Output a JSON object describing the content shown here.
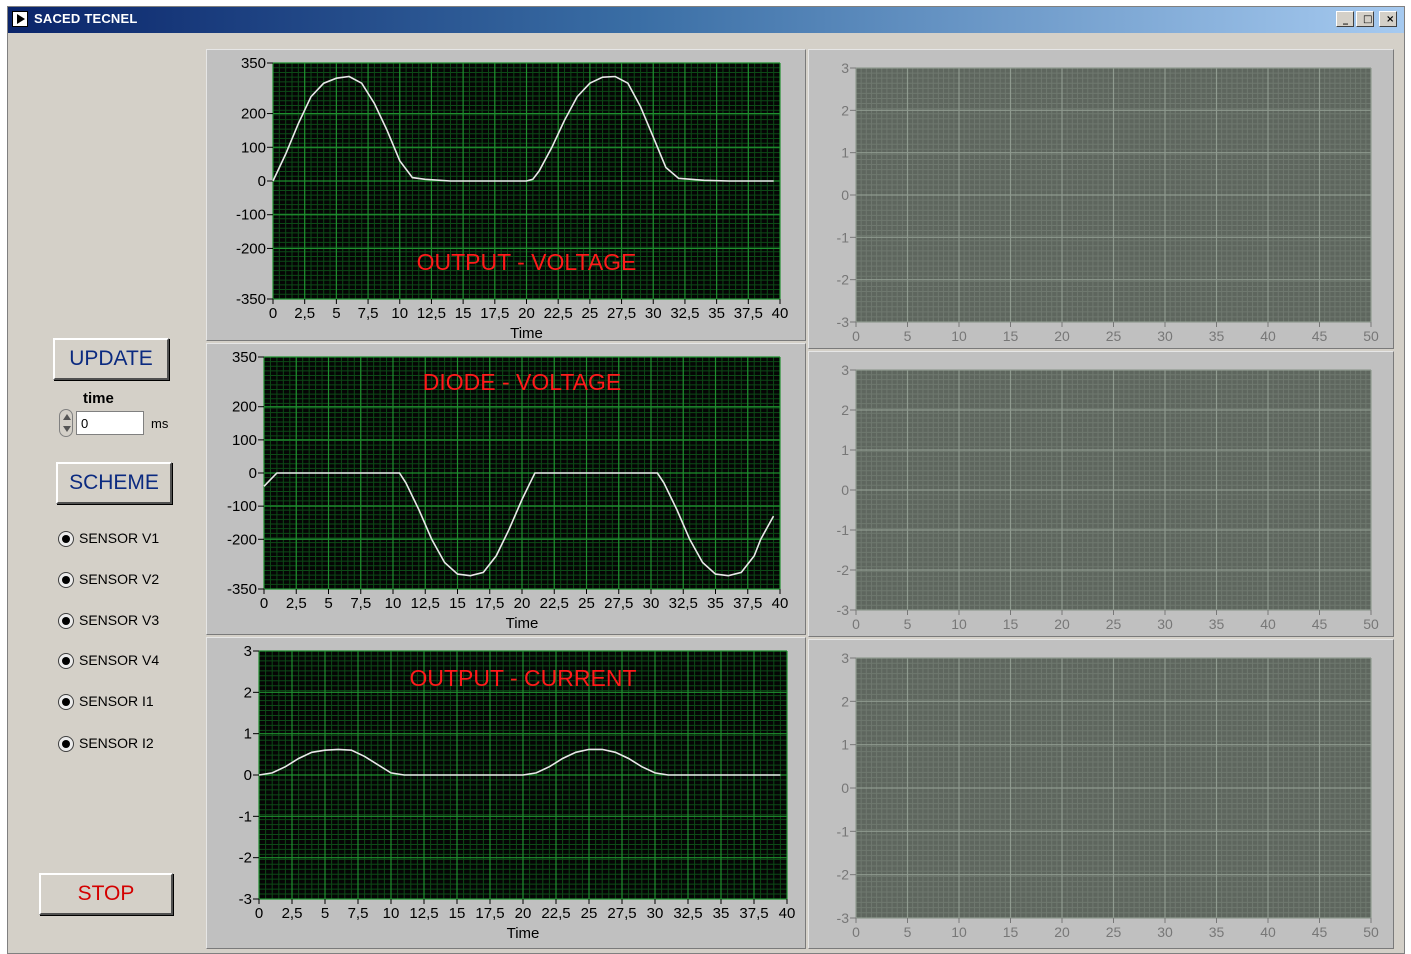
{
  "window": {
    "title": "SACED TECNEL",
    "controls": {
      "minimize": "_",
      "maximize": "□",
      "close": "×"
    }
  },
  "controls": {
    "update_label": "UPDATE",
    "time_label": "time",
    "time_value": "0",
    "time_unit": "ms",
    "scheme_label": "SCHEME",
    "stop_label": "STOP",
    "sensors": [
      "SENSOR V1",
      "SENSOR V2",
      "SENSOR V3",
      "SENSOR V4",
      "SENSOR I1",
      "SENSOR I2"
    ]
  },
  "colors": {
    "plot_bg": "#050505",
    "grid_major": "#1f8f2f",
    "grid_minor": "#0d4a17",
    "trace": "#e8e8e8",
    "chart_title": "#ff1a1a",
    "empty_plot_bg": "#5e665e",
    "stop_label": "#d40000",
    "button_label": "#0b2a80"
  },
  "chart_data": [
    {
      "id": "output-voltage",
      "type": "line",
      "title": "OUTPUT - VOLTAGE",
      "xlabel": "Time",
      "ylabel": "",
      "xlim": [
        0,
        40
      ],
      "ylim": [
        -350,
        350
      ],
      "xticks": [
        0,
        2.5,
        5,
        7.5,
        10,
        12.5,
        15,
        17.5,
        20,
        22.5,
        25,
        27.5,
        30,
        32.5,
        35,
        37.5,
        40
      ],
      "xtick_labels": [
        "0",
        "2,5",
        "5",
        "7,5",
        "10",
        "12,5",
        "15",
        "17,5",
        "20",
        "22,5",
        "25",
        "27,5",
        "30",
        "32,5",
        "35",
        "37,5",
        "40"
      ],
      "yticks": [
        350,
        200,
        100,
        0,
        -100,
        -200,
        -350
      ],
      "ytick_labels": [
        "350",
        "200",
        "100",
        "0",
        "-100",
        "-200",
        "-350"
      ],
      "title_position": "bottom-center",
      "series": [
        {
          "x": [
            0,
            1,
            2,
            3,
            4,
            5,
            6,
            7,
            8,
            9,
            10,
            11,
            12,
            14,
            16,
            18,
            20,
            20.5,
            21,
            22,
            23,
            24,
            25,
            26,
            27,
            28,
            29,
            30,
            31,
            32,
            34,
            36,
            38,
            39.5
          ],
          "y": [
            0,
            80,
            170,
            250,
            290,
            305,
            310,
            290,
            230,
            150,
            60,
            10,
            5,
            0,
            0,
            0,
            0,
            5,
            30,
            100,
            180,
            250,
            290,
            308,
            310,
            290,
            220,
            130,
            40,
            8,
            2,
            0,
            0,
            0
          ]
        }
      ]
    },
    {
      "id": "diode-voltage",
      "type": "line",
      "title": "DIODE - VOLTAGE",
      "xlabel": "Time",
      "ylabel": "",
      "xlim": [
        0,
        40
      ],
      "ylim": [
        -350,
        350
      ],
      "xticks": [
        0,
        2.5,
        5,
        7.5,
        10,
        12.5,
        15,
        17.5,
        20,
        22.5,
        25,
        27.5,
        30,
        32.5,
        35,
        37.5,
        40
      ],
      "xtick_labels": [
        "0",
        "2,5",
        "5",
        "7,5",
        "10",
        "12,5",
        "15",
        "17,5",
        "20",
        "22,5",
        "25",
        "27,5",
        "30",
        "32,5",
        "35",
        "37,5",
        "40"
      ],
      "yticks": [
        350,
        200,
        100,
        0,
        -100,
        -200,
        -350
      ],
      "ytick_labels": [
        "350",
        "200",
        "100",
        "0",
        "-100",
        "-200",
        "-350"
      ],
      "title_position": "top-center",
      "series": [
        {
          "x": [
            0,
            0.5,
            1,
            2,
            4,
            6,
            8,
            10,
            10.5,
            11,
            12,
            13,
            14,
            15,
            16,
            17,
            18,
            19,
            20,
            20.5,
            21,
            22,
            24,
            26,
            28,
            30,
            30.5,
            31,
            32,
            33,
            34,
            35,
            36,
            37,
            38,
            38.5,
            39.5
          ],
          "y": [
            -40,
            -20,
            0,
            0,
            0,
            0,
            0,
            0,
            0,
            -30,
            -110,
            -200,
            -270,
            -305,
            -310,
            -300,
            -250,
            -170,
            -80,
            -40,
            0,
            0,
            0,
            0,
            0,
            0,
            0,
            -30,
            -110,
            -200,
            -270,
            -305,
            -310,
            -300,
            -250,
            -200,
            -130
          ]
        }
      ]
    },
    {
      "id": "output-current",
      "type": "line",
      "title": "OUTPUT - CURRENT",
      "xlabel": "Time",
      "ylabel": "",
      "xlim": [
        0,
        40
      ],
      "ylim": [
        -3,
        3
      ],
      "xticks": [
        0,
        2.5,
        5,
        7.5,
        10,
        12.5,
        15,
        17.5,
        20,
        22.5,
        25,
        27.5,
        30,
        32.5,
        35,
        37.5,
        40
      ],
      "xtick_labels": [
        "0",
        "2,5",
        "5",
        "7,5",
        "10",
        "12,5",
        "15",
        "17,5",
        "20",
        "22,5",
        "25",
        "27,5",
        "30",
        "32,5",
        "35",
        "37,5",
        "40"
      ],
      "yticks": [
        3,
        2,
        1,
        0,
        -1,
        -2,
        -3
      ],
      "ytick_labels": [
        "3",
        "2",
        "1",
        "0",
        "-1",
        "-2",
        "-3"
      ],
      "title_position": "top-center",
      "series": [
        {
          "x": [
            0,
            1,
            2,
            3,
            4,
            5,
            6,
            7,
            8,
            9,
            10,
            11,
            12,
            14,
            16,
            18,
            20,
            21,
            22,
            23,
            24,
            25,
            26,
            27,
            28,
            29,
            30,
            31,
            32,
            34,
            36,
            38,
            39.5
          ],
          "y": [
            0,
            0.05,
            0.2,
            0.4,
            0.55,
            0.6,
            0.62,
            0.6,
            0.45,
            0.25,
            0.05,
            0,
            0,
            0,
            0,
            0,
            0,
            0.05,
            0.2,
            0.4,
            0.55,
            0.62,
            0.62,
            0.55,
            0.4,
            0.2,
            0.05,
            0,
            0,
            0,
            0,
            0,
            0
          ]
        }
      ]
    },
    {
      "id": "empty-plot-1",
      "type": "line",
      "title": "",
      "xlabel": "",
      "ylabel": "",
      "xlim": [
        0,
        50
      ],
      "ylim": [
        -3,
        3
      ],
      "xticks": [
        0,
        5,
        10,
        15,
        20,
        25,
        30,
        35,
        40,
        45,
        50
      ],
      "xtick_labels": [
        "0",
        "5",
        "10",
        "15",
        "20",
        "25",
        "30",
        "35",
        "40",
        "45",
        "50"
      ],
      "yticks": [
        3,
        2,
        1,
        0,
        -1,
        -2,
        -3
      ],
      "ytick_labels": [
        "3",
        "2",
        "1",
        "0",
        "-1",
        "-2",
        "-3"
      ],
      "series": []
    },
    {
      "id": "empty-plot-2",
      "type": "line",
      "title": "",
      "xlabel": "",
      "ylabel": "",
      "xlim": [
        0,
        50
      ],
      "ylim": [
        -3,
        3
      ],
      "xticks": [
        0,
        5,
        10,
        15,
        20,
        25,
        30,
        35,
        40,
        45,
        50
      ],
      "xtick_labels": [
        "0",
        "5",
        "10",
        "15",
        "20",
        "25",
        "30",
        "35",
        "40",
        "45",
        "50"
      ],
      "yticks": [
        3,
        2,
        1,
        0,
        -1,
        -2,
        -3
      ],
      "ytick_labels": [
        "3",
        "2",
        "1",
        "0",
        "-1",
        "-2",
        "-3"
      ],
      "series": []
    },
    {
      "id": "empty-plot-3",
      "type": "line",
      "title": "",
      "xlabel": "",
      "ylabel": "",
      "xlim": [
        0,
        50
      ],
      "ylim": [
        -3,
        3
      ],
      "xticks": [
        0,
        5,
        10,
        15,
        20,
        25,
        30,
        35,
        40,
        45,
        50
      ],
      "xtick_labels": [
        "0",
        "5",
        "10",
        "15",
        "20",
        "25",
        "30",
        "35",
        "40",
        "45",
        "50"
      ],
      "yticks": [
        3,
        2,
        1,
        0,
        -1,
        -2,
        -3
      ],
      "ytick_labels": [
        "3",
        "2",
        "1",
        "0",
        "-1",
        "-2",
        "-3"
      ],
      "series": []
    }
  ]
}
